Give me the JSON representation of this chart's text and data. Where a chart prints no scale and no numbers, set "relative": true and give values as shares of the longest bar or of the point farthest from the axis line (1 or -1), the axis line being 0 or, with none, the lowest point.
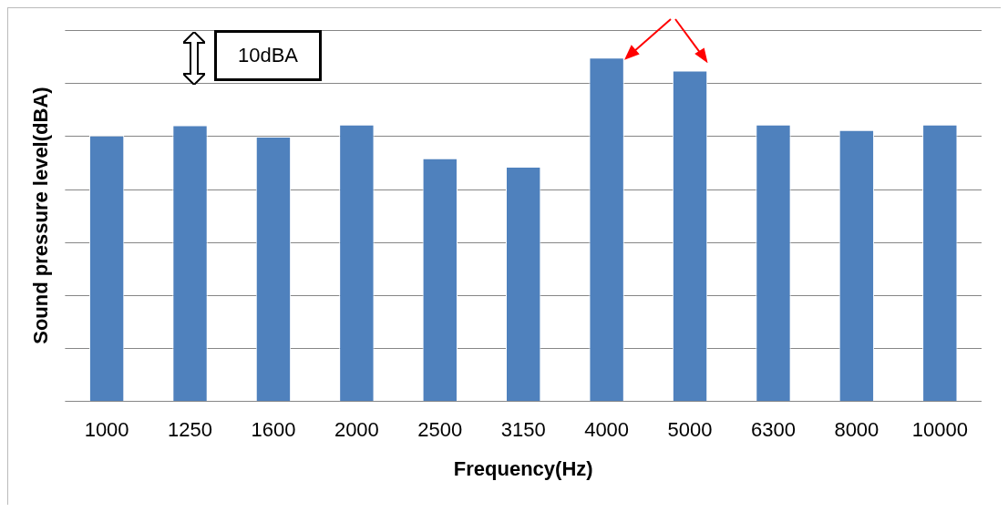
{
  "chart_data": {
    "type": "bar",
    "relative": true,
    "xlabel": "Frequency(Hz)",
    "ylabel": "Sound pressure level(dBA)",
    "categories": [
      "1000",
      "1250",
      "1600",
      "2000",
      "2500",
      "3150",
      "4000",
      "5000",
      "6300",
      "8000",
      "10000"
    ],
    "values": [
      0.773,
      0.803,
      0.77,
      0.805,
      0.707,
      0.682,
      1,
      0.962,
      0.805,
      0.789,
      0.805
    ],
    "color": "#4f81bd",
    "grid": "y",
    "legend": false,
    "annotations": [
      "10dBA"
    ]
  }
}
